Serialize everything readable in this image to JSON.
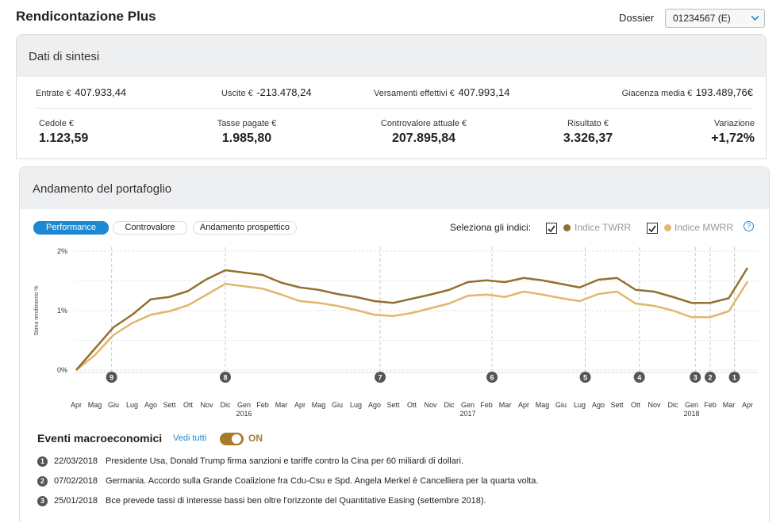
{
  "header": {
    "title": "Rendicontazione Plus",
    "dossier_label": "Dossier",
    "dossier_value": "01234567 (E)"
  },
  "summary": {
    "title": "Dati di sintesi",
    "row1": [
      {
        "label": "Entrate €",
        "value": "407.933,44"
      },
      {
        "label": "Uscite €",
        "value": "-213.478,24"
      },
      {
        "label": "Versamenti effettivi €",
        "value": "407.993,14"
      },
      {
        "label": "Giacenza media €",
        "value": "193.489,76€"
      }
    ],
    "row2": [
      {
        "label": "Cedole €",
        "value": "1.123,59"
      },
      {
        "label": "Tasse pagate €",
        "value": "1.985,80"
      },
      {
        "label": "Controvalore attuale €",
        "value": "207.895,84"
      },
      {
        "label": "Risultato €",
        "value": "3.326,37"
      },
      {
        "label": "Variazione",
        "value": "+1,72%"
      }
    ]
  },
  "chart_section": {
    "title": "Andamento del portafoglio",
    "tabs": [
      "Performance",
      "Controvalore",
      "Andamento prospettico"
    ],
    "index_selector_label": "Seleziona gli indici:",
    "help": "?"
  },
  "chart_data": {
    "type": "line",
    "ylabel": "Stima rendimento %",
    "categories": [
      "Apr",
      "Mag",
      "Giu",
      "Lug",
      "Ago",
      "Sett",
      "Ott",
      "Nov",
      "Dic",
      "Gen",
      "Feb",
      "Mar",
      "Apr",
      "Mag",
      "Giu",
      "Lug",
      "Ago",
      "Sett",
      "Ott",
      "Nov",
      "Dic",
      "Gen",
      "Feb",
      "Mar",
      "Apr",
      "Mag",
      "Giu",
      "Lug",
      "Ago",
      "Sett",
      "Ott",
      "Nov",
      "Dic",
      "Gen",
      "Feb",
      "Mar",
      "Apr"
    ],
    "year_labels": [
      null,
      null,
      null,
      null,
      null,
      null,
      null,
      null,
      null,
      "2016",
      null,
      null,
      null,
      null,
      null,
      null,
      null,
      null,
      null,
      null,
      null,
      "2017",
      null,
      null,
      null,
      null,
      null,
      null,
      null,
      null,
      null,
      null,
      null,
      "2018",
      null,
      null,
      null
    ],
    "series": [
      {
        "name": "Indice TWRR",
        "color": "#93702f",
        "values": [
          0,
          0.36,
          0.72,
          0.93,
          1.19,
          1.23,
          1.33,
          1.53,
          1.68,
          1.64,
          1.6,
          1.47,
          1.39,
          1.35,
          1.28,
          1.23,
          1.16,
          1.13,
          1.2,
          1.27,
          1.35,
          1.48,
          1.51,
          1.48,
          1.55,
          1.51,
          1.45,
          1.39,
          1.52,
          1.55,
          1.35,
          1.32,
          1.23,
          1.13,
          1.13,
          1.21,
          1.72
        ]
      },
      {
        "name": "Indice MWRR",
        "color": "#e3b66d",
        "values": [
          0,
          0.25,
          0.59,
          0.79,
          0.93,
          0.99,
          1.09,
          1.27,
          1.45,
          1.41,
          1.37,
          1.27,
          1.16,
          1.13,
          1.08,
          1.01,
          0.93,
          0.91,
          0.96,
          1.04,
          1.12,
          1.25,
          1.27,
          1.23,
          1.32,
          1.27,
          1.21,
          1.16,
          1.28,
          1.32,
          1.12,
          1.08,
          1.0,
          0.89,
          0.89,
          0.99,
          1.49
        ]
      }
    ],
    "ylim": [
      0,
      2
    ],
    "yticks": [
      {
        "value": 0,
        "label": "0%"
      },
      {
        "value": 1,
        "label": "1%"
      },
      {
        "value": 2,
        "label": "2%"
      }
    ],
    "minor_yticks": [
      0.5,
      1.5
    ],
    "grid": true,
    "markers": [
      {
        "label": "9",
        "x": 1.9
      },
      {
        "label": "8",
        "x": 8.0
      },
      {
        "label": "7",
        "x": 16.3
      },
      {
        "label": "6",
        "x": 22.3
      },
      {
        "label": "5",
        "x": 27.3
      },
      {
        "label": "4",
        "x": 30.2
      },
      {
        "label": "3",
        "x": 33.2
      },
      {
        "label": "2",
        "x": 34.0
      },
      {
        "label": "1",
        "x": 35.3
      }
    ]
  },
  "events": {
    "title": "Eventi macroeconomici",
    "link": "Vedi tutti",
    "toggle": "ON",
    "items": [
      {
        "number": "1",
        "date": "22/03/2018",
        "text": "Presidente Usa, Donald Trump firma sanzioni e tariffe contro la Cina per 60 miliardi di dollari."
      },
      {
        "number": "2",
        "date": "07/02/2018",
        "text": "Germania. Accordo sulla Grande Coalizione fra Cdu-Csu e Spd. Angela Merkel è Cancelliera per la quarta volta."
      },
      {
        "number": "3",
        "date": "25/01/2018",
        "text": "Bce prevede tassi di interesse bassi ben oltre l'orizzonte del Quantitative Easing (settembre 2018)."
      }
    ]
  }
}
